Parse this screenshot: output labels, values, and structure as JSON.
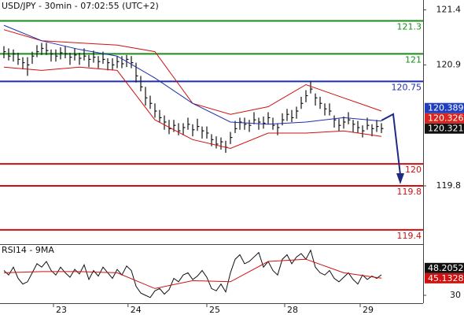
{
  "chart_data": [
    {
      "type": "ohlc",
      "title": "USD/JPY - 30min - 07:02:55 (UTC+2)",
      "xlim": [
        -0.83,
        88.83
      ],
      "ylim": [
        119.27,
        121.49
      ],
      "yticks": [
        121.4,
        120.9,
        119.8
      ],
      "x": [
        0,
        1,
        2,
        3,
        4,
        5,
        6,
        7,
        8,
        9,
        10,
        11,
        12,
        13,
        14,
        15,
        16,
        17,
        18,
        19,
        20,
        21,
        22,
        23,
        24,
        25,
        26,
        27,
        28,
        29,
        30,
        31,
        32,
        33,
        34,
        35,
        36,
        37,
        38,
        39,
        40,
        41,
        42,
        43,
        44,
        45,
        46,
        47,
        48,
        49,
        50,
        51,
        52,
        53,
        54,
        55,
        56,
        57,
        58,
        59,
        60,
        61,
        62,
        63,
        64,
        65,
        66,
        67,
        68,
        69,
        70,
        71,
        72,
        73,
        74,
        75,
        76,
        77,
        78,
        79,
        80
      ],
      "high": [
        121.07,
        121.05,
        121.04,
        121.01,
        120.97,
        120.97,
        121.02,
        121.08,
        121.1,
        121.1,
        121.04,
        121.04,
        121.06,
        121.07,
        121.01,
        121.05,
        121.01,
        121.05,
        120.99,
        121.03,
        120.98,
        121.02,
        120.96,
        120.96,
        120.98,
        120.98,
        120.99,
        120.98,
        120.92,
        120.8,
        120.7,
        120.62,
        120.55,
        120.49,
        120.44,
        120.4,
        120.4,
        120.37,
        120.37,
        120.42,
        120.36,
        120.41,
        120.34,
        120.34,
        120.27,
        120.25,
        120.24,
        120.21,
        120.29,
        120.39,
        120.42,
        120.42,
        120.4,
        120.47,
        120.42,
        120.43,
        120.47,
        120.42,
        120.37,
        120.46,
        120.5,
        120.49,
        120.52,
        120.61,
        120.67,
        120.75,
        120.64,
        120.61,
        120.55,
        120.55,
        120.44,
        120.41,
        120.43,
        120.47,
        120.4,
        120.39,
        120.35,
        120.42,
        120.36,
        120.4,
        120.37
      ],
      "low": [
        120.96,
        120.94,
        120.93,
        120.9,
        120.86,
        120.8,
        120.91,
        120.97,
        120.99,
        120.99,
        120.93,
        120.93,
        120.95,
        120.96,
        120.9,
        120.94,
        120.9,
        120.94,
        120.88,
        120.92,
        120.87,
        120.91,
        120.85,
        120.85,
        120.87,
        120.87,
        120.88,
        120.87,
        120.74,
        120.66,
        120.53,
        120.5,
        120.42,
        120.38,
        120.31,
        120.27,
        120.29,
        120.26,
        120.26,
        120.31,
        120.25,
        120.3,
        120.23,
        120.23,
        120.16,
        120.14,
        120.13,
        120.1,
        120.18,
        120.28,
        120.31,
        120.31,
        120.29,
        120.36,
        120.31,
        120.32,
        120.36,
        120.31,
        120.26,
        120.35,
        120.39,
        120.38,
        120.41,
        120.5,
        120.56,
        120.64,
        120.53,
        120.5,
        120.44,
        120.44,
        120.33,
        120.3,
        120.32,
        120.36,
        120.29,
        120.28,
        120.24,
        120.31,
        120.25,
        120.29,
        120.28
      ],
      "close": [
        121.02,
        120.98,
        121.0,
        120.95,
        120.92,
        120.9,
        120.98,
        121.02,
        121.05,
        121.03,
        121.0,
        120.98,
        121.01,
        121.0,
        120.97,
        120.99,
        120.96,
        120.98,
        120.95,
        120.97,
        120.93,
        120.95,
        120.92,
        120.9,
        120.93,
        120.91,
        120.95,
        120.92,
        120.8,
        120.7,
        120.6,
        120.55,
        120.48,
        120.42,
        120.38,
        120.32,
        120.35,
        120.3,
        120.33,
        120.36,
        120.31,
        120.34,
        120.3,
        120.28,
        120.22,
        120.18,
        120.2,
        120.15,
        120.24,
        120.32,
        120.38,
        120.36,
        120.35,
        120.4,
        120.38,
        120.37,
        120.42,
        120.35,
        120.33,
        120.4,
        120.45,
        120.42,
        120.48,
        120.55,
        120.62,
        120.68,
        120.6,
        120.55,
        120.5,
        120.48,
        120.4,
        120.35,
        120.38,
        120.4,
        120.36,
        120.33,
        120.3,
        120.35,
        120.32,
        120.34,
        120.321
      ],
      "bar_color": "#111111",
      "series": [
        {
          "color": "#d01010",
          "x": [
            0,
            8,
            16,
            24,
            32,
            40,
            48,
            56,
            64,
            72,
            80
          ],
          "values": [
            121.22,
            121.12,
            121.1,
            121.08,
            121.02,
            120.55,
            120.45,
            120.52,
            120.72,
            120.6,
            120.48
          ]
        },
        {
          "color": "#d01010",
          "x": [
            0,
            8,
            16,
            24,
            32,
            40,
            48,
            56,
            64,
            72,
            80
          ],
          "values": [
            120.88,
            120.85,
            120.88,
            120.85,
            120.4,
            120.22,
            120.14,
            120.28,
            120.28,
            120.3,
            120.25
          ]
        },
        {
          "color": "#1f2fa8",
          "x": [
            0,
            8,
            16,
            24,
            32,
            40,
            48,
            56,
            64,
            72,
            80
          ],
          "values": [
            121.26,
            121.12,
            121.04,
            120.98,
            120.78,
            120.55,
            120.38,
            120.36,
            120.38,
            120.42,
            120.389
          ]
        }
      ],
      "levels": [
        121.3,
        121,
        120.75,
        120,
        119.8,
        119.4
      ],
      "level_colors": [
        "#1a8c1a",
        "#1a8c1a",
        "#1f2fa8",
        "#d01010",
        "#d01010",
        "#d01010"
      ],
      "price_tags": [
        120.389,
        120.326,
        120.321
      ],
      "price_tag_colors": [
        "#1f3fbf",
        "#d9251f",
        "#111111"
      ]
    },
    {
      "type": "line",
      "title": "RSI14 - 9MA",
      "xlim": [
        -0.83,
        88.83
      ],
      "ylim": [
        23,
        74
      ],
      "yticks": [
        30
      ],
      "xticks": [
        {
          "value": 10.5,
          "label": "23"
        },
        {
          "value": 26.3,
          "label": "24"
        },
        {
          "value": 43,
          "label": "25"
        },
        {
          "value": 59.5,
          "label": "28"
        },
        {
          "value": 75.5,
          "label": "29"
        }
      ],
      "series": [
        {
          "color": "#111111",
          "x": [
            0,
            1,
            2,
            3,
            4,
            5,
            6,
            7,
            8,
            9,
            10,
            11,
            12,
            13,
            14,
            15,
            16,
            17,
            18,
            19,
            20,
            21,
            22,
            23,
            24,
            25,
            26,
            27,
            28,
            29,
            30,
            31,
            32,
            33,
            34,
            35,
            36,
            37,
            38,
            39,
            40,
            41,
            42,
            43,
            44,
            45,
            46,
            47,
            48,
            49,
            50,
            51,
            52,
            53,
            54,
            55,
            56,
            57,
            58,
            59,
            60,
            61,
            62,
            63,
            64,
            65,
            66,
            67,
            68,
            69,
            70,
            71,
            72,
            73,
            74,
            75,
            76,
            77,
            78,
            79,
            80
          ],
          "values": [
            52,
            48,
            55,
            45,
            40,
            42,
            50,
            58,
            55,
            60,
            52,
            48,
            55,
            50,
            46,
            53,
            49,
            57,
            44,
            52,
            47,
            55,
            50,
            45,
            53,
            48,
            56,
            52,
            38,
            32,
            30,
            28,
            34,
            36,
            31,
            35,
            45,
            42,
            48,
            50,
            44,
            47,
            52,
            46,
            36,
            34,
            40,
            33,
            50,
            62,
            66,
            58,
            60,
            64,
            68,
            55,
            60,
            52,
            48,
            62,
            66,
            58,
            64,
            67,
            62,
            70,
            55,
            50,
            48,
            52,
            45,
            42,
            46,
            50,
            44,
            40,
            48,
            44,
            47,
            45,
            48.2052
          ]
        },
        {
          "color": "#d01010",
          "x": [
            0,
            8,
            16,
            24,
            32,
            40,
            48,
            56,
            64,
            72,
            80
          ],
          "values": [
            50,
            51,
            51,
            50,
            36,
            43,
            42,
            60,
            62,
            50,
            45.1328
          ]
        }
      ]
    }
  ]
}
